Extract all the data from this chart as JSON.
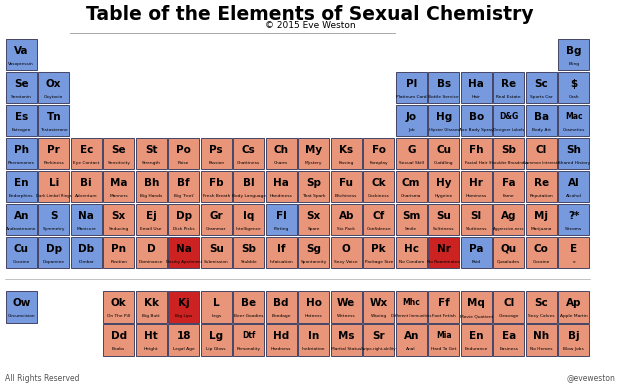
{
  "title": "Table of the Elements of Sexual Chemistry",
  "subtitle": "© 2015 Eve Weston",
  "footer_left": "All Rights Reserved",
  "footer_right": "@eveweston",
  "BLUE": "#7799dd",
  "PINK": "#e8957a",
  "RED": "#cc2222",
  "BORDER": "#444466",
  "elements": [
    {
      "sym": "Va",
      "name": "Vasopressin",
      "col": 0,
      "row": 0,
      "color": "blue"
    },
    {
      "sym": "Bg",
      "name": "Bling",
      "col": 17,
      "row": 0,
      "color": "blue"
    },
    {
      "sym": "Se",
      "name": "Serotonin",
      "col": 0,
      "row": 1,
      "color": "blue"
    },
    {
      "sym": "Ox",
      "name": "Oxytocin",
      "col": 1,
      "row": 1,
      "color": "blue"
    },
    {
      "sym": "Pl",
      "name": "Platinum Card",
      "col": 12,
      "row": 1,
      "color": "blue"
    },
    {
      "sym": "Bs",
      "name": "Bottle Service",
      "col": 13,
      "row": 1,
      "color": "blue"
    },
    {
      "sym": "Ha",
      "name": "Hair",
      "col": 14,
      "row": 1,
      "color": "blue"
    },
    {
      "sym": "Re",
      "name": "Real Estate",
      "col": 15,
      "row": 1,
      "color": "blue"
    },
    {
      "sym": "Sc",
      "name": "Sports Car",
      "col": 16,
      "row": 1,
      "color": "blue"
    },
    {
      "sym": "$",
      "name": "Cash",
      "col": 17,
      "row": 1,
      "color": "blue"
    },
    {
      "sym": "Es",
      "name": "Estrogen",
      "col": 0,
      "row": 2,
      "color": "blue"
    },
    {
      "sym": "Tn",
      "name": "Testosterone",
      "col": 1,
      "row": 2,
      "color": "blue"
    },
    {
      "sym": "Jo",
      "name": "Job",
      "col": 12,
      "row": 2,
      "color": "blue"
    },
    {
      "sym": "Hg",
      "name": "Hipster Glasses",
      "col": 13,
      "row": 2,
      "color": "blue"
    },
    {
      "sym": "Bo",
      "name": "Axe Body Spray",
      "col": 14,
      "row": 2,
      "color": "blue"
    },
    {
      "sym": "D&G",
      "name": "Designer Labels",
      "col": 15,
      "row": 2,
      "color": "blue"
    },
    {
      "sym": "Ba",
      "name": "Body Art",
      "col": 16,
      "row": 2,
      "color": "blue"
    },
    {
      "sym": "Mac",
      "name": "Cosmetics",
      "col": 17,
      "row": 2,
      "color": "blue"
    },
    {
      "sym": "Ph",
      "name": "Pheromones",
      "col": 0,
      "row": 3,
      "color": "blue"
    },
    {
      "sym": "Pr",
      "name": "Perkiness",
      "col": 1,
      "row": 3,
      "color": "pink"
    },
    {
      "sym": "Ec",
      "name": "Eye Contact",
      "col": 2,
      "row": 3,
      "color": "pink"
    },
    {
      "sym": "Se",
      "name": "Sensitivity",
      "col": 3,
      "row": 3,
      "color": "pink"
    },
    {
      "sym": "St",
      "name": "Strength",
      "col": 4,
      "row": 3,
      "color": "pink"
    },
    {
      "sym": "Po",
      "name": "Poise",
      "col": 5,
      "row": 3,
      "color": "pink"
    },
    {
      "sym": "Ps",
      "name": "Passion",
      "col": 6,
      "row": 3,
      "color": "pink"
    },
    {
      "sym": "Cs",
      "name": "Chattiness",
      "col": 7,
      "row": 3,
      "color": "pink"
    },
    {
      "sym": "Ch",
      "name": "Charm",
      "col": 8,
      "row": 3,
      "color": "pink"
    },
    {
      "sym": "My",
      "name": "Mystery",
      "col": 9,
      "row": 3,
      "color": "pink"
    },
    {
      "sym": "Ks",
      "name": "Kissing",
      "col": 10,
      "row": 3,
      "color": "pink"
    },
    {
      "sym": "Fo",
      "name": "Foreplay",
      "col": 11,
      "row": 3,
      "color": "pink"
    },
    {
      "sym": "G",
      "name": "Sexual Skill",
      "col": 12,
      "row": 3,
      "color": "pink"
    },
    {
      "sym": "Cu",
      "name": "Cuddling",
      "col": 13,
      "row": 3,
      "color": "pink"
    },
    {
      "sym": "Fh",
      "name": "Facial Hair",
      "col": 14,
      "row": 3,
      "color": "pink"
    },
    {
      "sym": "Sb",
      "name": "Shoulder Broadness",
      "col": 15,
      "row": 3,
      "color": "pink"
    },
    {
      "sym": "Cl",
      "name": "Common Interests",
      "col": 16,
      "row": 3,
      "color": "pink"
    },
    {
      "sym": "Sh",
      "name": "Shared History",
      "col": 17,
      "row": 3,
      "color": "blue"
    },
    {
      "sym": "En",
      "name": "Endorphins",
      "col": 0,
      "row": 4,
      "color": "blue"
    },
    {
      "sym": "Li",
      "name": "Dark Limbal Rings",
      "col": 1,
      "row": 4,
      "color": "pink"
    },
    {
      "sym": "Bi",
      "name": "Adventure",
      "col": 2,
      "row": 4,
      "color": "pink"
    },
    {
      "sym": "Ma",
      "name": "Manners",
      "col": 3,
      "row": 4,
      "color": "pink"
    },
    {
      "sym": "Bh",
      "name": "Big Hands",
      "col": 4,
      "row": 4,
      "color": "pink"
    },
    {
      "sym": "Bf",
      "name": "Big 'Feet'",
      "col": 5,
      "row": 4,
      "color": "pink"
    },
    {
      "sym": "Fb",
      "name": "Fresh Breath",
      "col": 6,
      "row": 4,
      "color": "pink"
    },
    {
      "sym": "Bl",
      "name": "Body Language",
      "col": 7,
      "row": 4,
      "color": "pink"
    },
    {
      "sym": "Ha",
      "name": "Handiness",
      "col": 8,
      "row": 4,
      "color": "pink"
    },
    {
      "sym": "Sp",
      "name": "That Spark",
      "col": 9,
      "row": 4,
      "color": "pink"
    },
    {
      "sym": "Fu",
      "name": "Bitchiness",
      "col": 10,
      "row": 4,
      "color": "pink"
    },
    {
      "sym": "Ck",
      "name": "Cockiness",
      "col": 11,
      "row": 4,
      "color": "pink"
    },
    {
      "sym": "Cm",
      "name": "Charisma",
      "col": 12,
      "row": 4,
      "color": "pink"
    },
    {
      "sym": "Hy",
      "name": "Hygeine",
      "col": 13,
      "row": 4,
      "color": "pink"
    },
    {
      "sym": "Hr",
      "name": "Hominess",
      "col": 14,
      "row": 4,
      "color": "pink"
    },
    {
      "sym": "Fa",
      "name": "Fame",
      "col": 15,
      "row": 4,
      "color": "pink"
    },
    {
      "sym": "Re",
      "name": "Reputation",
      "col": 16,
      "row": 4,
      "color": "pink"
    },
    {
      "sym": "Al",
      "name": "Alcohol",
      "col": 17,
      "row": 4,
      "color": "blue"
    },
    {
      "sym": "An",
      "name": "Androstenone",
      "col": 0,
      "row": 5,
      "color": "blue"
    },
    {
      "sym": "S",
      "name": "Symmetry",
      "col": 1,
      "row": 5,
      "color": "blue"
    },
    {
      "sym": "Na",
      "name": "Manicure",
      "col": 2,
      "row": 5,
      "color": "blue"
    },
    {
      "sym": "Sx",
      "name": "Seducing",
      "col": 3,
      "row": 5,
      "color": "pink"
    },
    {
      "sym": "Ej",
      "name": "Email Use",
      "col": 4,
      "row": 5,
      "color": "pink"
    },
    {
      "sym": "Dp",
      "name": "Dick Picks",
      "col": 5,
      "row": 5,
      "color": "pink"
    },
    {
      "sym": "Gr",
      "name": "Grammar",
      "col": 6,
      "row": 5,
      "color": "pink"
    },
    {
      "sym": "Iq",
      "name": "Intelligence",
      "col": 7,
      "row": 5,
      "color": "pink"
    },
    {
      "sym": "Fl",
      "name": "Flirting",
      "col": 8,
      "row": 5,
      "color": "blue"
    },
    {
      "sym": "Sx",
      "name": "Spare",
      "col": 9,
      "row": 5,
      "color": "pink"
    },
    {
      "sym": "Ab",
      "name": "Six Pack",
      "col": 10,
      "row": 5,
      "color": "pink"
    },
    {
      "sym": "Cf",
      "name": "Confidence",
      "col": 11,
      "row": 5,
      "color": "pink"
    },
    {
      "sym": "Sm",
      "name": "Smile",
      "col": 12,
      "row": 5,
      "color": "pink"
    },
    {
      "sym": "Su",
      "name": "Sultriness",
      "col": 13,
      "row": 5,
      "color": "pink"
    },
    {
      "sym": "Sl",
      "name": "Sluttiness",
      "col": 14,
      "row": 5,
      "color": "pink"
    },
    {
      "sym": "Ag",
      "name": "Aggressive-ness",
      "col": 15,
      "row": 5,
      "color": "pink"
    },
    {
      "sym": "Mj",
      "name": "Marijuana",
      "col": 16,
      "row": 5,
      "color": "pink"
    },
    {
      "sym": "?*",
      "name": "Sitcoms",
      "col": 17,
      "row": 5,
      "color": "blue"
    },
    {
      "sym": "Cu",
      "name": "Cocaine",
      "col": 0,
      "row": 6,
      "color": "blue"
    },
    {
      "sym": "Dp",
      "name": "Dopamine",
      "col": 1,
      "row": 6,
      "color": "blue"
    },
    {
      "sym": "Db",
      "name": "Dimbar",
      "col": 2,
      "row": 6,
      "color": "blue"
    },
    {
      "sym": "Pn",
      "name": "Position",
      "col": 3,
      "row": 6,
      "color": "pink"
    },
    {
      "sym": "D",
      "name": "Dominance",
      "col": 4,
      "row": 6,
      "color": "pink"
    },
    {
      "sym": "Na",
      "name": "Nearby Apartment",
      "col": 5,
      "row": 6,
      "color": "red"
    },
    {
      "sym": "Su",
      "name": "Submission",
      "col": 6,
      "row": 6,
      "color": "pink"
    },
    {
      "sym": "Sb",
      "name": "Stubble",
      "col": 7,
      "row": 6,
      "color": "pink"
    },
    {
      "sym": "If",
      "name": "Infatuation",
      "col": 8,
      "row": 6,
      "color": "pink"
    },
    {
      "sym": "Sg",
      "name": "Spontaneity",
      "col": 9,
      "row": 6,
      "color": "pink"
    },
    {
      "sym": "O",
      "name": "Sexy Voice",
      "col": 10,
      "row": 6,
      "color": "pink"
    },
    {
      "sym": "Pk",
      "name": "Package Size",
      "col": 11,
      "row": 6,
      "color": "pink"
    },
    {
      "sym": "Hc",
      "name": "No Condom",
      "col": 12,
      "row": 6,
      "color": "pink"
    },
    {
      "sym": "Nr",
      "name": "No Roommates",
      "col": 13,
      "row": 6,
      "color": "red"
    },
    {
      "sym": "Pa",
      "name": "Paid",
      "col": 14,
      "row": 6,
      "color": "blue"
    },
    {
      "sym": "Qu",
      "name": "Quaaludes",
      "col": 15,
      "row": 6,
      "color": "pink"
    },
    {
      "sym": "Co",
      "name": "Cocaine",
      "col": 16,
      "row": 6,
      "color": "pink"
    },
    {
      "sym": "E",
      "name": "e",
      "col": 17,
      "row": 6,
      "color": "pink"
    },
    {
      "sym": "Ow",
      "name": "Circumcision",
      "col": 0,
      "row": 8,
      "color": "blue"
    },
    {
      "sym": "Ok",
      "name": "On The Pill",
      "col": 3,
      "row": 8,
      "color": "pink"
    },
    {
      "sym": "Kk",
      "name": "Big Butt",
      "col": 4,
      "row": 8,
      "color": "pink"
    },
    {
      "sym": "Kj",
      "name": "Big Lips",
      "col": 5,
      "row": 8,
      "color": "red"
    },
    {
      "sym": "L",
      "name": "Legs",
      "col": 6,
      "row": 8,
      "color": "pink"
    },
    {
      "sym": "Be",
      "name": "Beer Goodies",
      "col": 7,
      "row": 8,
      "color": "pink"
    },
    {
      "sym": "Bd",
      "name": "Bondage",
      "col": 8,
      "row": 8,
      "color": "pink"
    },
    {
      "sym": "Ho",
      "name": "Hotness",
      "col": 9,
      "row": 8,
      "color": "pink"
    },
    {
      "sym": "We",
      "name": "Wetness",
      "col": 10,
      "row": 8,
      "color": "pink"
    },
    {
      "sym": "Wx",
      "name": "Waxing",
      "col": 11,
      "row": 8,
      "color": "pink"
    },
    {
      "sym": "Mhc",
      "name": "Different Immunities",
      "col": 12,
      "row": 8,
      "color": "pink"
    },
    {
      "sym": "Ff",
      "name": "Foot Fetish",
      "col": 13,
      "row": 8,
      "color": "pink"
    },
    {
      "sym": "Mq",
      "name": "Movie Quotient",
      "col": 14,
      "row": 8,
      "color": "pink"
    },
    {
      "sym": "Cl",
      "name": "Cleavage",
      "col": 15,
      "row": 8,
      "color": "pink"
    },
    {
      "sym": "Sc",
      "name": "Sexy Calves",
      "col": 16,
      "row": 8,
      "color": "pink"
    },
    {
      "sym": "Ap",
      "name": "Apple Martin",
      "col": 17,
      "row": 8,
      "color": "pink"
    },
    {
      "sym": "Dd",
      "name": "Boobs",
      "col": 3,
      "row": 9,
      "color": "pink"
    },
    {
      "sym": "Ht",
      "name": "Height",
      "col": 4,
      "row": 9,
      "color": "pink"
    },
    {
      "sym": "18",
      "name": "Legal Age",
      "col": 5,
      "row": 9,
      "color": "pink"
    },
    {
      "sym": "Lg",
      "name": "Lip Gloss",
      "col": 6,
      "row": 9,
      "color": "pink"
    },
    {
      "sym": "Dtf",
      "name": "Personality",
      "col": 7,
      "row": 9,
      "color": "pink"
    },
    {
      "sym": "Hd",
      "name": "Hardness",
      "col": 8,
      "row": 9,
      "color": "pink"
    },
    {
      "sym": "In",
      "name": "Inebriation",
      "col": 9,
      "row": 9,
      "color": "pink"
    },
    {
      "sym": "Ms",
      "name": "Marital Status",
      "col": 10,
      "row": 9,
      "color": "pink"
    },
    {
      "sym": "Sr",
      "name": "Swipe-right-ability",
      "col": 11,
      "row": 9,
      "color": "pink"
    },
    {
      "sym": "An",
      "name": "Anal",
      "col": 12,
      "row": 9,
      "color": "pink"
    },
    {
      "sym": "Mia",
      "name": "Hard To Get",
      "col": 13,
      "row": 9,
      "color": "pink"
    },
    {
      "sym": "En",
      "name": "Endurance",
      "col": 14,
      "row": 9,
      "color": "pink"
    },
    {
      "sym": "Ea",
      "name": "Easiness",
      "col": 15,
      "row": 9,
      "color": "pink"
    },
    {
      "sym": "Nh",
      "name": "No Heroes",
      "col": 16,
      "row": 9,
      "color": "pink"
    },
    {
      "sym": "Bj",
      "name": "Blow Jobs",
      "col": 17,
      "row": 9,
      "color": "pink"
    }
  ]
}
